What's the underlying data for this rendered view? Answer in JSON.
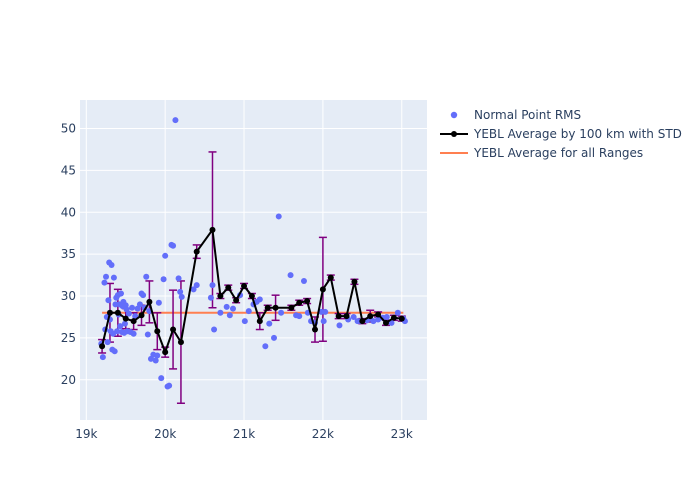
{
  "chart_data": {
    "type": "scatter",
    "title": "",
    "xlabel": "",
    "ylabel": "",
    "xlim": [
      18920,
      23320
    ],
    "ylim": [
      15.2,
      53.4
    ],
    "x_ticks": [
      19000,
      20000,
      21000,
      22000,
      23000
    ],
    "x_tick_labels": [
      "19k",
      "20k",
      "21k",
      "22k",
      "23k"
    ],
    "y_ticks": [
      20,
      25,
      30,
      35,
      40,
      45,
      50
    ],
    "y_tick_labels": [
      "20",
      "25",
      "30",
      "35",
      "40",
      "45",
      "50"
    ],
    "legend_position": "top-right-outside",
    "colors": {
      "background": "#e5ecf6",
      "grid": "#ffffff",
      "scatter": "#636efa",
      "average_line": "#000000",
      "error_bar": "#800080",
      "overall_line": "#ff7f50"
    },
    "series": [
      {
        "name": "Normal Point RMS",
        "kind": "scatter",
        "x": [
          19190,
          19210,
          19230,
          19240,
          19250,
          19260,
          19270,
          19280,
          19290,
          19300,
          19310,
          19320,
          19330,
          19340,
          19350,
          19360,
          19370,
          19380,
          19390,
          19400,
          19410,
          19420,
          19430,
          19440,
          19450,
          19460,
          19470,
          19480,
          19490,
          19500,
          19510,
          19520,
          19540,
          19560,
          19580,
          19600,
          19620,
          19650,
          19680,
          19700,
          19720,
          19740,
          19760,
          19780,
          19800,
          19820,
          19850,
          19880,
          19900,
          19920,
          19950,
          19980,
          20000,
          20030,
          20050,
          20080,
          20100,
          20130,
          20170,
          20190,
          20210,
          20360,
          20400,
          20580,
          20600,
          20620,
          20700,
          20780,
          20820,
          20860,
          20950,
          21010,
          21060,
          21120,
          21160,
          21200,
          21270,
          21320,
          21380,
          21440,
          21470,
          21590,
          21660,
          21700,
          21760,
          21810,
          21850,
          21900,
          21980,
          22010,
          22030,
          22210,
          22320,
          22390,
          22440,
          22480,
          22560,
          22600,
          22640,
          22700,
          22760,
          22810,
          22870,
          22950,
          23020,
          23040
        ],
        "y": [
          24.3,
          22.7,
          31.6,
          26.0,
          32.3,
          27.5,
          24.5,
          29.5,
          34.0,
          27.2,
          25.8,
          33.7,
          23.6,
          25.5,
          32.2,
          23.4,
          29.0,
          29.8,
          25.8,
          30.1,
          27.8,
          29.0,
          26.4,
          30.3,
          25.7,
          28.8,
          29.3,
          25.6,
          26.7,
          28.9,
          28.4,
          25.8,
          27.9,
          25.7,
          28.6,
          25.5,
          27.6,
          28.5,
          29.0,
          30.3,
          30.1,
          28.6,
          32.3,
          25.4,
          28.2,
          22.5,
          23.0,
          22.3,
          22.9,
          29.2,
          20.2,
          32.0,
          34.8,
          19.2,
          19.3,
          36.1,
          36.0,
          51.0,
          32.1,
          30.5,
          29.9,
          30.8,
          31.3,
          29.8,
          31.3,
          26.0,
          28.0,
          28.7,
          27.7,
          28.5,
          30.1,
          27.0,
          28.2,
          29.0,
          29.3,
          29.6,
          24.0,
          26.7,
          25.0,
          39.5,
          28.0,
          32.5,
          27.7,
          27.6,
          31.8,
          28.0,
          27.0,
          26.8,
          28.1,
          27.0,
          28.1,
          26.5,
          27.2,
          27.5,
          27.0,
          27.0,
          27.1,
          27.3,
          27.0,
          27.2,
          27.4,
          27.5,
          26.8,
          28.0,
          27.3,
          27.0
        ]
      },
      {
        "name": "YEBL Average by 100 km with STD",
        "kind": "line-errorbars",
        "x": [
          19200,
          19300,
          19400,
          19500,
          19600,
          19700,
          19800,
          19900,
          20000,
          20100,
          20200,
          20400,
          20600,
          20700,
          20800,
          20900,
          21000,
          21100,
          21200,
          21300,
          21400,
          21600,
          21700,
          21800,
          21900,
          22000,
          22100,
          22200,
          22300,
          22400,
          22500,
          22600,
          22700,
          22800,
          22900,
          23000
        ],
        "y": [
          24.0,
          28.0,
          28.0,
          27.3,
          27.0,
          27.7,
          29.3,
          25.8,
          23.3,
          26.0,
          24.5,
          35.3,
          37.9,
          30.0,
          31.0,
          29.5,
          31.2,
          30.0,
          27.0,
          28.6,
          28.6,
          28.6,
          29.2,
          29.4,
          26.0,
          30.8,
          32.2,
          27.6,
          27.6,
          31.7,
          27.0,
          27.6,
          27.8,
          26.8,
          27.4,
          27.3
        ],
        "err": [
          0.8,
          3.5,
          2.8,
          1.2,
          1.0,
          1.2,
          2.5,
          2.2,
          0.6,
          4.7,
          7.3,
          0.8,
          9.3,
          0.3,
          0.3,
          0.3,
          0.3,
          0.3,
          1.0,
          0.3,
          1.5,
          0.3,
          0.3,
          0.3,
          1.5,
          6.2,
          0.3,
          0.3,
          0.3,
          0.3,
          0.3,
          0.7,
          0.3,
          0.3,
          0.3,
          0.3
        ]
      },
      {
        "name": "YEBL Average for all Ranges",
        "kind": "line",
        "x": [
          19200,
          23020
        ],
        "y": [
          28.0,
          28.0
        ]
      }
    ]
  }
}
